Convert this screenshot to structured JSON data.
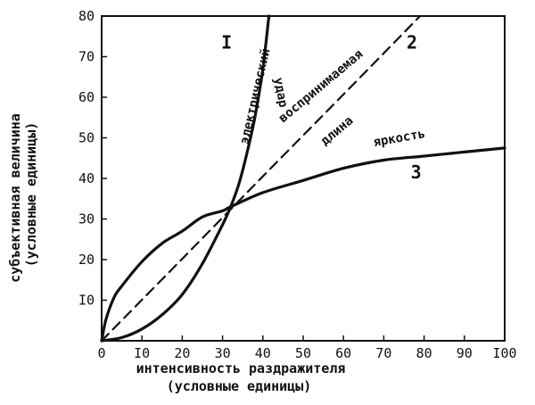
{
  "chart_data": {
    "type": "line",
    "title": "",
    "xlabel": [
      "интенсивность раздражителя",
      "(условные единицы)"
    ],
    "ylabel": [
      "субъективная величина",
      "(условные единицы)"
    ],
    "xlim": [
      0,
      100
    ],
    "ylim": [
      0,
      80
    ],
    "x_ticks": [
      {
        "value": 0,
        "label": "0"
      },
      {
        "value": 10,
        "label": "I0"
      },
      {
        "value": 20,
        "label": "20"
      },
      {
        "value": 30,
        "label": "30"
      },
      {
        "value": 40,
        "label": "40"
      },
      {
        "value": 50,
        "label": "50"
      },
      {
        "value": 60,
        "label": "60"
      },
      {
        "value": 70,
        "label": "70"
      },
      {
        "value": 80,
        "label": "80"
      },
      {
        "value": 90,
        "label": "90"
      },
      {
        "value": 100,
        "label": "I00"
      }
    ],
    "y_ticks": [
      {
        "value": 10,
        "label": "I0"
      },
      {
        "value": 20,
        "label": "20"
      },
      {
        "value": 30,
        "label": "30"
      },
      {
        "value": 40,
        "label": "40"
      },
      {
        "value": 50,
        "label": "50"
      },
      {
        "value": 60,
        "label": "60"
      },
      {
        "value": 70,
        "label": "70"
      },
      {
        "value": 80,
        "label": "80"
      }
    ],
    "grid": false,
    "legend": "none",
    "series": [
      {
        "name": "электрический удар",
        "number": "I",
        "style": "solid",
        "color": "#111111",
        "x": [
          0,
          5,
          10,
          15,
          20,
          25,
          30,
          32,
          34,
          36,
          38,
          40,
          41.5
        ],
        "y": [
          0,
          0.8,
          2.9,
          6.4,
          11.4,
          19,
          28.6,
          33,
          38.5,
          46,
          55,
          67,
          80
        ]
      },
      {
        "name": "воспринимаемая длина",
        "number": "2",
        "style": "dashed",
        "color": "#111111",
        "x": [
          0,
          20,
          40,
          60,
          79
        ],
        "y": [
          0,
          20.2,
          40.5,
          60.7,
          80
        ]
      },
      {
        "name": "яркость",
        "number": "3",
        "style": "solid",
        "color": "#111111",
        "x": [
          0,
          1,
          3,
          5,
          10,
          15,
          20,
          25,
          30,
          32,
          40,
          50,
          60,
          70,
          80,
          90,
          100
        ],
        "y": [
          0,
          5,
          10.5,
          13.5,
          19.5,
          24,
          27,
          30.5,
          32,
          33,
          36.5,
          39.5,
          42.5,
          44.5,
          45.5,
          46.5,
          47.5
        ]
      }
    ],
    "annotations": [
      {
        "text": "электрический",
        "x": 39,
        "y": 60,
        "angle": -77,
        "size": 14
      },
      {
        "text": "удар",
        "x": 43.5,
        "y": 61,
        "angle": 80,
        "size": 14
      },
      {
        "text": "воспринимаемая",
        "x": 55,
        "y": 62,
        "angle": -40,
        "size": 14
      },
      {
        "text": "длина",
        "x": 59,
        "y": 51,
        "angle": -40,
        "size": 14
      },
      {
        "text": "яркость",
        "x": 74,
        "y": 49,
        "angle": -10,
        "size": 14
      },
      {
        "text": "I",
        "x": 31,
        "y": 72,
        "angle": 0,
        "size": 20
      },
      {
        "text": "2",
        "x": 77,
        "y": 72,
        "angle": 0,
        "size": 20
      },
      {
        "text": "3",
        "x": 78,
        "y": 40,
        "angle": 0,
        "size": 20
      }
    ]
  }
}
